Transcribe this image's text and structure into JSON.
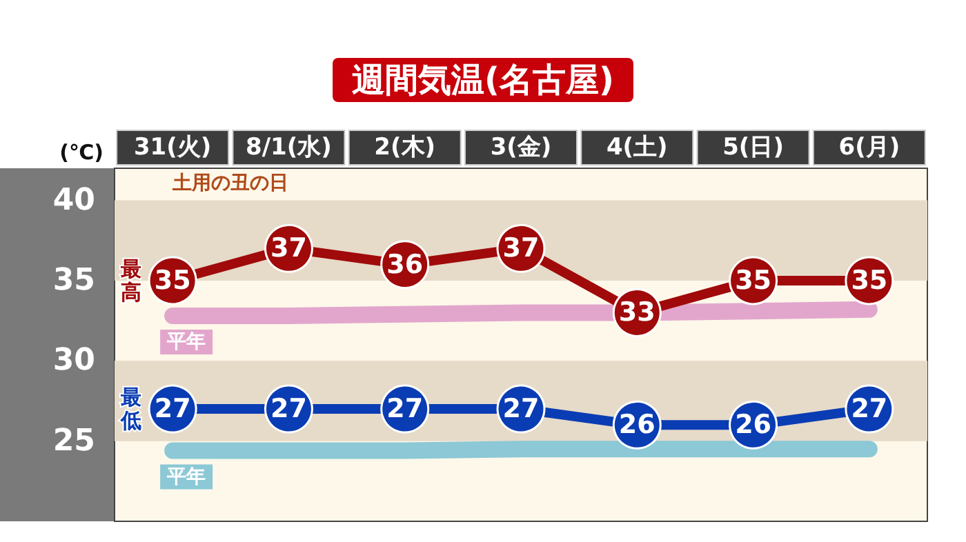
{
  "chart_data": {
    "type": "line",
    "title": "週間気温(名古屋)",
    "ylabel": "(℃)",
    "categories": [
      "31(火)",
      "8/1(水)",
      "2(木)",
      "3(金)",
      "4(土)",
      "5(日)",
      "6(月)"
    ],
    "series": [
      {
        "name": "最高",
        "color": "#a00a0a",
        "values": [
          35,
          37,
          36,
          37,
          33,
          35,
          35
        ],
        "data_labels": true,
        "marker": "circle"
      },
      {
        "name": "最低",
        "color": "#0a3cb4",
        "values": [
          27,
          27,
          27,
          27,
          26,
          26,
          27
        ],
        "data_labels": true,
        "marker": "circle"
      },
      {
        "name": "平年",
        "color": "#e2a6cc",
        "values": [
          32.8,
          32.8,
          32.9,
          33,
          33,
          33.1,
          33.2
        ],
        "marker": "none"
      },
      {
        "name": "平年",
        "color": "#8cc8d6",
        "values": [
          24.4,
          24.4,
          24.4,
          24.5,
          24.5,
          24.5,
          24.5
        ],
        "marker": "none"
      }
    ],
    "ylim": [
      20,
      42
    ],
    "yticks": [
      25,
      30,
      35,
      40
    ],
    "bands": [
      {
        "axis": "y",
        "from": 35,
        "to": 40,
        "color": "#e6dac8"
      },
      {
        "axis": "y",
        "from": 25,
        "to": 30,
        "color": "#e6dac8"
      }
    ],
    "annotations": [
      "土用の丑の日"
    ]
  }
}
